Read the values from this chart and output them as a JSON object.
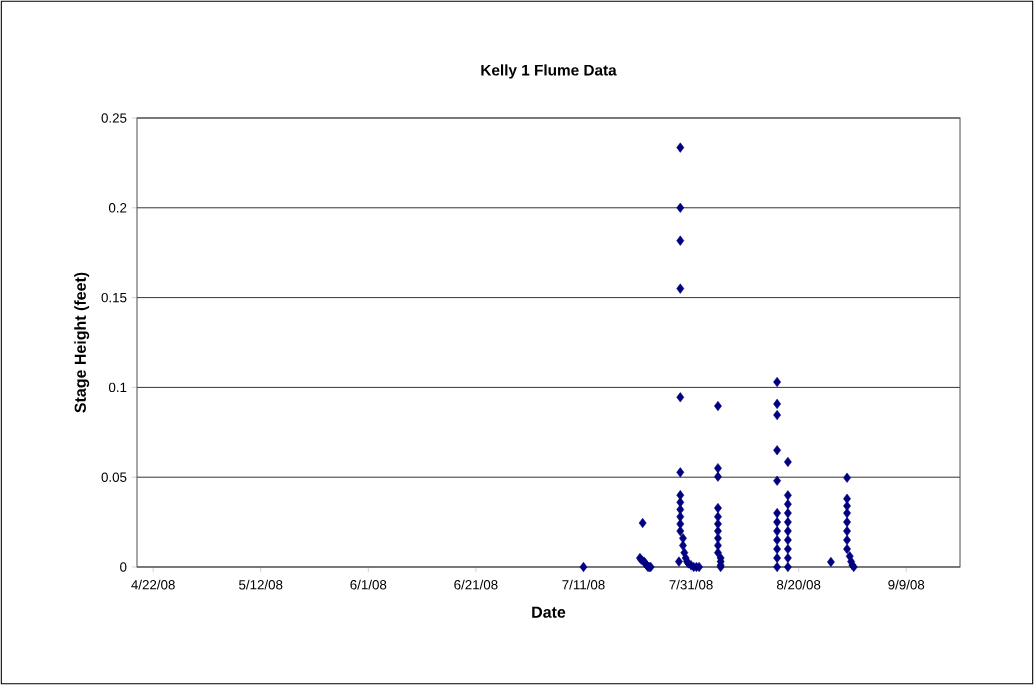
{
  "chart_data": {
    "type": "scatter",
    "title": "Kelly 1 Flume Data",
    "xlabel": "Date",
    "ylabel": "Stage Height (feet)",
    "xlim": [
      "2008-04-19",
      "2008-09-19"
    ],
    "xticks": [
      {
        "value": "2008-04-22",
        "label": "4/22/08"
      },
      {
        "value": "2008-05-12",
        "label": "5/12/08"
      },
      {
        "value": "2008-06-01",
        "label": "6/1/08"
      },
      {
        "value": "2008-06-21",
        "label": "6/21/08"
      },
      {
        "value": "2008-07-11",
        "label": "7/11/08"
      },
      {
        "value": "2008-07-31",
        "label": "7/31/08"
      },
      {
        "value": "2008-08-20",
        "label": "8/20/08"
      },
      {
        "value": "2008-09-09",
        "label": "9/9/08"
      }
    ],
    "ylim": [
      0,
      0.25
    ],
    "yticks": [
      0,
      0.05,
      0.1,
      0.15,
      0.2,
      0.25
    ],
    "grid": "y",
    "marker": "diamond",
    "series": [
      {
        "color": "#000080",
        "x": [
          "2008-07-11",
          "2008-07-22",
          "2008-07-21T12:00",
          "2008-07-21T18:00",
          "2008-07-22T06:00",
          "2008-07-22T12:00",
          "2008-07-22T18:00",
          "2008-07-23T00:00",
          "2008-07-23T06:00",
          "2008-07-23T12:00",
          "2008-07-29",
          "2008-07-29",
          "2008-07-29",
          "2008-07-29",
          "2008-07-29",
          "2008-07-29",
          "2008-07-29",
          "2008-07-29",
          "2008-07-29",
          "2008-07-29",
          "2008-07-29",
          "2008-07-29",
          "2008-07-29T12:00",
          "2008-07-29T12:00",
          "2008-07-29T18:00",
          "2008-07-30T00:00",
          "2008-07-30T06:00",
          "2008-07-30T12:00",
          "2008-07-31T00:00",
          "2008-07-31T12:00",
          "2008-08-01T00:00",
          "2008-08-01T12:00",
          "2008-07-28T18:00",
          "2008-08-05",
          "2008-08-05",
          "2008-08-05",
          "2008-08-05",
          "2008-08-05",
          "2008-08-05",
          "2008-08-05",
          "2008-08-05",
          "2008-08-05",
          "2008-08-05",
          "2008-08-05T12:00",
          "2008-08-05T12:00",
          "2008-08-05T12:00",
          "2008-08-05T12:00",
          "2008-08-16",
          "2008-08-16",
          "2008-08-16",
          "2008-08-16",
          "2008-08-18",
          "2008-08-16",
          "2008-08-18",
          "2008-08-18",
          "2008-08-16",
          "2008-08-16",
          "2008-08-16",
          "2008-08-16",
          "2008-08-16",
          "2008-08-16",
          "2008-08-16",
          "2008-08-18",
          "2008-08-18",
          "2008-08-18",
          "2008-08-18",
          "2008-08-18",
          "2008-08-18",
          "2008-08-18",
          "2008-08-26",
          "2008-08-29",
          "2008-08-29",
          "2008-08-29",
          "2008-08-29",
          "2008-08-29",
          "2008-08-29",
          "2008-08-29",
          "2008-08-29",
          "2008-08-29T12:00",
          "2008-08-29T18:00",
          "2008-08-30",
          "2008-08-30T06:00"
        ],
        "values": [
          0,
          0.0245,
          0.005,
          0.004,
          0.003,
          0.002,
          0.001,
          0.0,
          0.0,
          0.0,
          0.2335,
          0.2,
          0.1817,
          0.155,
          0.0945,
          0.0527,
          0.04,
          0.036,
          0.032,
          0.028,
          0.024,
          0.02,
          0.016,
          0.012,
          0.008,
          0.005,
          0.003,
          0.002,
          0.001,
          0.0,
          0.0,
          0.0,
          0.003,
          0.0896,
          0.055,
          0.0503,
          0.0328,
          0.028,
          0.024,
          0.02,
          0.016,
          0.012,
          0.008,
          0.005,
          0.003,
          0.001,
          0.0,
          0.103,
          0.0908,
          0.0846,
          0.065,
          0.0585,
          0.048,
          0.0399,
          0.035,
          0.03,
          0.025,
          0.02,
          0.015,
          0.01,
          0.005,
          0.0,
          0.03,
          0.025,
          0.02,
          0.015,
          0.01,
          0.005,
          0.0,
          0.0028,
          0.0497,
          0.038,
          0.034,
          0.03,
          0.025,
          0.02,
          0.015,
          0.01,
          0.006,
          0.003,
          0.001,
          0.0
        ]
      }
    ]
  }
}
